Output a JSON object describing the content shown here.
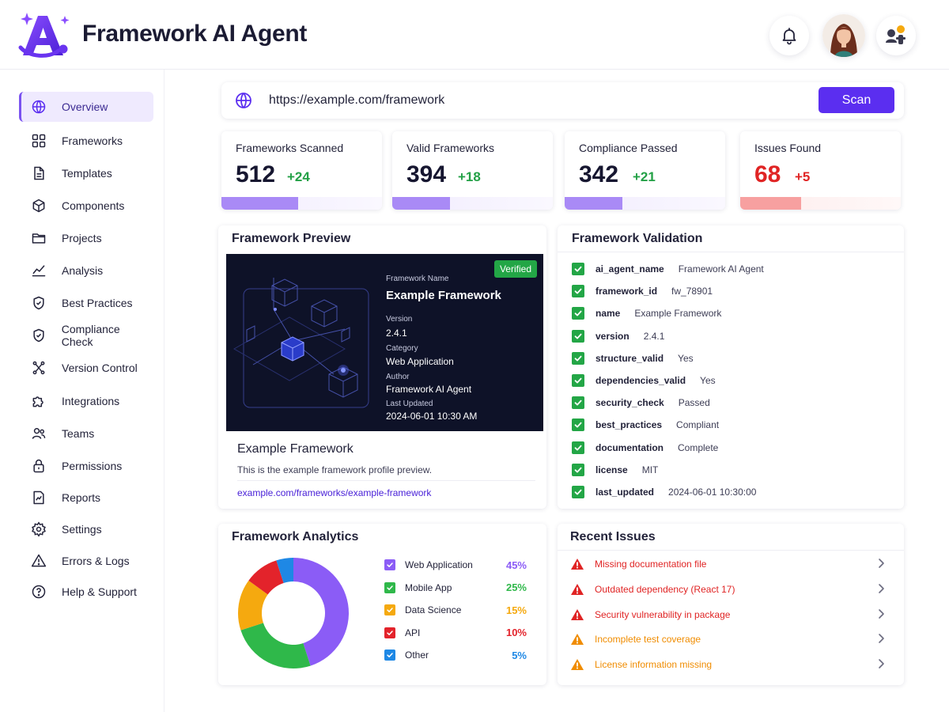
{
  "header": {
    "title": "Framework AI Agent",
    "logo_icon": "agent-logo-icon",
    "notification_icon": "bell-icon",
    "avatar_icon": "user-avatar",
    "agent_icon": "agent-status-icon"
  },
  "sidebar": {
    "items": [
      {
        "label": "Overview",
        "icon": "globe-icon",
        "active": true
      },
      {
        "label": "Frameworks",
        "icon": "grid-icon"
      },
      {
        "label": "Templates",
        "icon": "document-icon"
      },
      {
        "label": "Components",
        "icon": "cube-icon"
      },
      {
        "label": "Projects",
        "icon": "folder-icon"
      },
      {
        "label": "Analysis",
        "icon": "chart-line-icon"
      },
      {
        "label": "Best Practices",
        "icon": "shield-check-icon"
      },
      {
        "label": "Compliance Check",
        "icon": "shield-icon"
      },
      {
        "label": "Version Control",
        "icon": "branch-icon"
      },
      {
        "label": "Integrations",
        "icon": "puzzle-icon"
      },
      {
        "label": "Teams",
        "icon": "users-icon"
      },
      {
        "label": "Permissions",
        "icon": "lock-icon"
      },
      {
        "label": "Reports",
        "icon": "report-icon"
      },
      {
        "label": "Settings",
        "icon": "gear-icon"
      },
      {
        "label": "Errors & Logs",
        "icon": "warning-icon"
      },
      {
        "label": "Help & Support",
        "icon": "help-icon"
      }
    ]
  },
  "scan": {
    "url": "https://example.com/framework",
    "button_label": "Scan"
  },
  "stats": [
    {
      "label": "Frameworks Scanned",
      "value": "512",
      "delta": "+24",
      "progress": 0.48
    },
    {
      "label": "Valid Frameworks",
      "value": "394",
      "delta": "+18",
      "progress": 0.36
    },
    {
      "label": "Compliance Passed",
      "value": "342",
      "delta": "+21",
      "progress": 0.36
    },
    {
      "label": "Issues Found",
      "value": "68",
      "delta": "+5",
      "progress": 0.38
    }
  ],
  "preview": {
    "title": "Framework Preview",
    "badge": "Verified",
    "name_label": "Framework Name",
    "name": "Example Framework",
    "version_label": "Version",
    "version": "2.4.1",
    "category_label": "Category",
    "category": "Web Application",
    "author_label": "Author",
    "author": "Framework AI Agent",
    "updated_label": "Last Updated",
    "updated": "2024-06-01 10:30 AM",
    "card_name": "Example Framework",
    "card_desc": "This is the example framework profile preview.",
    "card_link": "example.com/frameworks/example-framework"
  },
  "validation": {
    "title": "Framework Validation",
    "rows": [
      {
        "key": "ai_agent_name",
        "value": "Framework AI Agent"
      },
      {
        "key": "framework_id",
        "value": "fw_78901"
      },
      {
        "key": "name",
        "value": "Example Framework"
      },
      {
        "key": "version",
        "value": "2.4.1"
      },
      {
        "key": "structure_valid",
        "value": "Yes"
      },
      {
        "key": "dependencies_valid",
        "value": "Yes"
      },
      {
        "key": "security_check",
        "value": "Passed"
      },
      {
        "key": "best_practices",
        "value": "Compliant"
      },
      {
        "key": "documentation",
        "value": "Complete"
      },
      {
        "key": "license",
        "value": "MIT"
      },
      {
        "key": "last_updated",
        "value": "2024-06-01 10:30:00"
      }
    ]
  },
  "analytics": {
    "title": "Framework Analytics",
    "colors": [
      "#8b5cf6",
      "#2fb84a",
      "#f5a90f",
      "#e3232b",
      "#1e88e5"
    ]
  },
  "chart_data": {
    "type": "pie",
    "categories": [
      "Web Application",
      "Mobile App",
      "Data Science",
      "API",
      "Other"
    ],
    "values": [
      45,
      25,
      15,
      10,
      5
    ],
    "value_labels": [
      "45%",
      "25%",
      "15%",
      "10%",
      "5%"
    ],
    "donut": true,
    "legend": "right"
  },
  "issues": {
    "title": "Recent Issues",
    "items": [
      {
        "text": "Missing documentation file",
        "severity": "error",
        "color": "#e02424"
      },
      {
        "text": "Outdated dependency (React 17)",
        "severity": "error",
        "color": "#e02424"
      },
      {
        "text": "Security vulnerability in package",
        "severity": "error",
        "color": "#e02424"
      },
      {
        "text": "Incomplete test coverage",
        "severity": "warning",
        "color": "#f08c00"
      },
      {
        "text": "License information missing",
        "severity": "warning",
        "color": "#f08c00"
      }
    ]
  }
}
